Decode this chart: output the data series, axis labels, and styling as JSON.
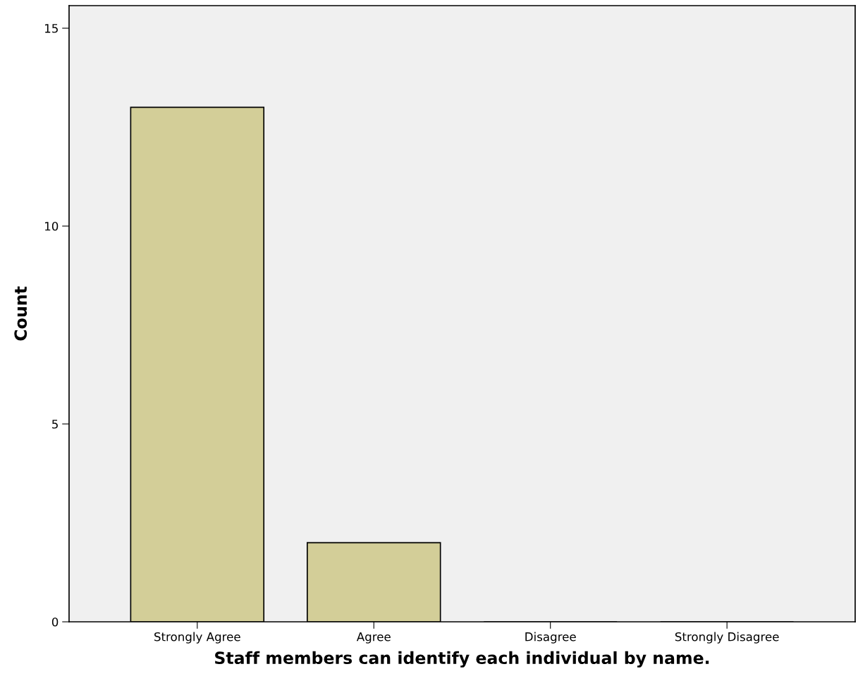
{
  "chart_data": {
    "type": "bar",
    "xlabel": "Staff members can identify each individual by name.",
    "ylabel": "Count",
    "categories": [
      "Strongly Agree",
      "Agree",
      "Disagree",
      "Strongly Disagree"
    ],
    "values": [
      13,
      2,
      0,
      0
    ],
    "color": "#d3ce98",
    "ylim": [
      0,
      15.57
    ],
    "yticks": [
      0,
      5,
      10,
      15
    ]
  }
}
